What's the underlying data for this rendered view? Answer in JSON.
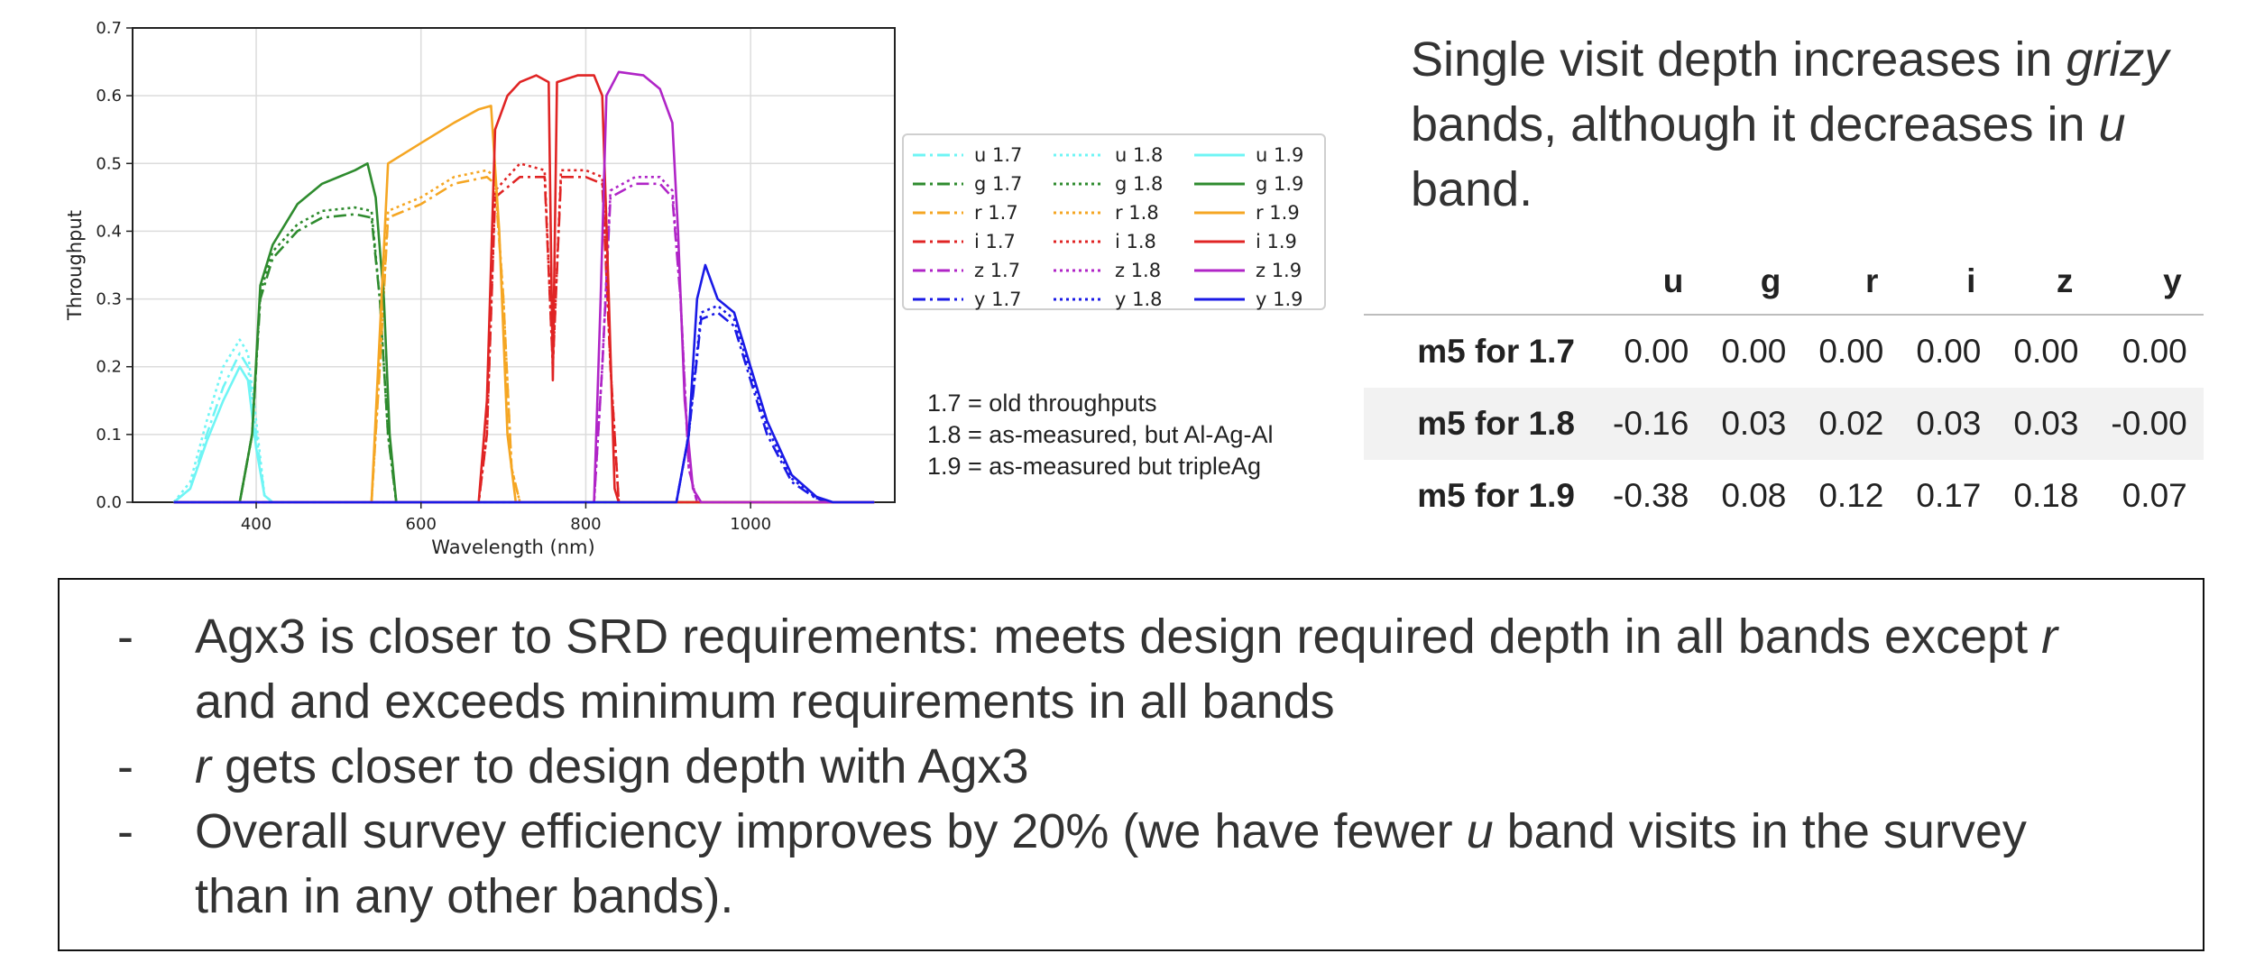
{
  "chart_data": {
    "type": "line",
    "xlabel": "Wavelength (nm)",
    "ylabel": "Throughput",
    "xlim": [
      250,
      1175
    ],
    "ylim": [
      0.0,
      0.7
    ],
    "xticks": [
      400,
      600,
      800,
      1000
    ],
    "yticks": [
      0.0,
      0.1,
      0.2,
      0.3,
      0.4,
      0.5,
      0.6,
      0.7
    ],
    "grid": true,
    "legend_position": "right",
    "colors": {
      "u": "#6ff5f5",
      "g": "#2e8b2e",
      "r": "#f5a623",
      "i": "#e02424",
      "z": "#b025c7",
      "y": "#1a1ae6"
    },
    "series": [
      {
        "name": "u 1.7",
        "band": "u",
        "style": "dashdot",
        "points": [
          [
            300,
            0
          ],
          [
            320,
            0.02
          ],
          [
            340,
            0.1
          ],
          [
            360,
            0.17
          ],
          [
            380,
            0.22
          ],
          [
            390,
            0.2
          ],
          [
            400,
            0.1
          ],
          [
            410,
            0.01
          ],
          [
            420,
            0
          ]
        ]
      },
      {
        "name": "g 1.7",
        "band": "g",
        "style": "dashdot",
        "points": [
          [
            380,
            0
          ],
          [
            395,
            0.1
          ],
          [
            405,
            0.3
          ],
          [
            420,
            0.36
          ],
          [
            450,
            0.4
          ],
          [
            480,
            0.42
          ],
          [
            520,
            0.425
          ],
          [
            540,
            0.42
          ],
          [
            550,
            0.3
          ],
          [
            560,
            0.1
          ],
          [
            570,
            0
          ]
        ]
      },
      {
        "name": "r 1.7",
        "band": "r",
        "style": "dashdot",
        "points": [
          [
            540,
            0
          ],
          [
            550,
            0.2
          ],
          [
            560,
            0.42
          ],
          [
            600,
            0.44
          ],
          [
            640,
            0.47
          ],
          [
            680,
            0.48
          ],
          [
            690,
            0.47
          ],
          [
            700,
            0.3
          ],
          [
            710,
            0.05
          ],
          [
            720,
            0
          ]
        ]
      },
      {
        "name": "i 1.7",
        "band": "i",
        "style": "dashdot",
        "points": [
          [
            670,
            0
          ],
          [
            680,
            0.1
          ],
          [
            690,
            0.45
          ],
          [
            720,
            0.48
          ],
          [
            750,
            0.48
          ],
          [
            760,
            0.2
          ],
          [
            770,
            0.48
          ],
          [
            800,
            0.48
          ],
          [
            820,
            0.47
          ],
          [
            830,
            0.2
          ],
          [
            840,
            0
          ]
        ]
      },
      {
        "name": "z 1.7",
        "band": "z",
        "style": "dashdot",
        "points": [
          [
            810,
            0
          ],
          [
            820,
            0.2
          ],
          [
            830,
            0.45
          ],
          [
            860,
            0.47
          ],
          [
            890,
            0.47
          ],
          [
            905,
            0.45
          ],
          [
            915,
            0.3
          ],
          [
            925,
            0.05
          ],
          [
            935,
            0
          ]
        ]
      },
      {
        "name": "y 1.7",
        "band": "y",
        "style": "dashdot",
        "points": [
          [
            910,
            0
          ],
          [
            925,
            0.1
          ],
          [
            940,
            0.27
          ],
          [
            960,
            0.28
          ],
          [
            980,
            0.26
          ],
          [
            1000,
            0.18
          ],
          [
            1020,
            0.1
          ],
          [
            1050,
            0.03
          ],
          [
            1080,
            0.005
          ],
          [
            1100,
            0
          ]
        ]
      },
      {
        "name": "u 1.8",
        "band": "u",
        "style": "dotted",
        "points": [
          [
            300,
            0
          ],
          [
            320,
            0.03
          ],
          [
            340,
            0.12
          ],
          [
            360,
            0.2
          ],
          [
            380,
            0.24
          ],
          [
            390,
            0.22
          ],
          [
            400,
            0.12
          ],
          [
            410,
            0.01
          ],
          [
            420,
            0
          ]
        ]
      },
      {
        "name": "g 1.8",
        "band": "g",
        "style": "dotted",
        "points": [
          [
            380,
            0
          ],
          [
            395,
            0.1
          ],
          [
            405,
            0.31
          ],
          [
            420,
            0.37
          ],
          [
            450,
            0.41
          ],
          [
            480,
            0.43
          ],
          [
            520,
            0.435
          ],
          [
            540,
            0.43
          ],
          [
            550,
            0.3
          ],
          [
            560,
            0.1
          ],
          [
            570,
            0
          ]
        ]
      },
      {
        "name": "r 1.8",
        "band": "r",
        "style": "dotted",
        "points": [
          [
            540,
            0
          ],
          [
            550,
            0.2
          ],
          [
            560,
            0.43
          ],
          [
            600,
            0.45
          ],
          [
            640,
            0.48
          ],
          [
            680,
            0.49
          ],
          [
            690,
            0.48
          ],
          [
            700,
            0.3
          ],
          [
            710,
            0.05
          ],
          [
            720,
            0
          ]
        ]
      },
      {
        "name": "i 1.8",
        "band": "i",
        "style": "dotted",
        "points": [
          [
            670,
            0
          ],
          [
            680,
            0.1
          ],
          [
            690,
            0.46
          ],
          [
            720,
            0.5
          ],
          [
            750,
            0.49
          ],
          [
            760,
            0.2
          ],
          [
            770,
            0.49
          ],
          [
            800,
            0.49
          ],
          [
            820,
            0.48
          ],
          [
            830,
            0.2
          ],
          [
            840,
            0
          ]
        ]
      },
      {
        "name": "z 1.8",
        "band": "z",
        "style": "dotted",
        "points": [
          [
            810,
            0
          ],
          [
            820,
            0.2
          ],
          [
            830,
            0.46
          ],
          [
            860,
            0.48
          ],
          [
            890,
            0.48
          ],
          [
            905,
            0.46
          ],
          [
            915,
            0.3
          ],
          [
            925,
            0.05
          ],
          [
            935,
            0
          ]
        ]
      },
      {
        "name": "y 1.8",
        "band": "y",
        "style": "dotted",
        "points": [
          [
            910,
            0
          ],
          [
            925,
            0.1
          ],
          [
            940,
            0.28
          ],
          [
            960,
            0.29
          ],
          [
            980,
            0.27
          ],
          [
            1000,
            0.19
          ],
          [
            1020,
            0.11
          ],
          [
            1050,
            0.035
          ],
          [
            1080,
            0.006
          ],
          [
            1100,
            0
          ]
        ]
      },
      {
        "name": "u 1.9",
        "band": "u",
        "style": "solid",
        "points": [
          [
            300,
            0
          ],
          [
            320,
            0.02
          ],
          [
            340,
            0.09
          ],
          [
            360,
            0.15
          ],
          [
            380,
            0.2
          ],
          [
            390,
            0.18
          ],
          [
            400,
            0.08
          ],
          [
            410,
            0.01
          ],
          [
            420,
            0
          ]
        ]
      },
      {
        "name": "g 1.9",
        "band": "g",
        "style": "solid",
        "points": [
          [
            380,
            0
          ],
          [
            395,
            0.1
          ],
          [
            405,
            0.32
          ],
          [
            420,
            0.38
          ],
          [
            450,
            0.44
          ],
          [
            480,
            0.47
          ],
          [
            520,
            0.49
          ],
          [
            535,
            0.5
          ],
          [
            545,
            0.45
          ],
          [
            555,
            0.3
          ],
          [
            562,
            0.1
          ],
          [
            570,
            0
          ]
        ]
      },
      {
        "name": "r 1.9",
        "band": "r",
        "style": "solid",
        "points": [
          [
            540,
            0
          ],
          [
            550,
            0.25
          ],
          [
            560,
            0.5
          ],
          [
            600,
            0.53
          ],
          [
            640,
            0.56
          ],
          [
            670,
            0.58
          ],
          [
            685,
            0.585
          ],
          [
            695,
            0.4
          ],
          [
            705,
            0.1
          ],
          [
            715,
            0
          ]
        ]
      },
      {
        "name": "i 1.9",
        "band": "i",
        "style": "solid",
        "points": [
          [
            670,
            0
          ],
          [
            680,
            0.15
          ],
          [
            690,
            0.55
          ],
          [
            705,
            0.6
          ],
          [
            720,
            0.62
          ],
          [
            740,
            0.63
          ],
          [
            755,
            0.62
          ],
          [
            760,
            0.18
          ],
          [
            765,
            0.62
          ],
          [
            790,
            0.63
          ],
          [
            810,
            0.63
          ],
          [
            820,
            0.6
          ],
          [
            828,
            0.3
          ],
          [
            835,
            0.02
          ],
          [
            840,
            0
          ]
        ]
      },
      {
        "name": "z 1.9",
        "band": "z",
        "style": "solid",
        "points": [
          [
            810,
            0
          ],
          [
            818,
            0.3
          ],
          [
            825,
            0.6
          ],
          [
            840,
            0.635
          ],
          [
            870,
            0.63
          ],
          [
            890,
            0.61
          ],
          [
            905,
            0.56
          ],
          [
            912,
            0.4
          ],
          [
            920,
            0.15
          ],
          [
            930,
            0.02
          ],
          [
            940,
            0
          ]
        ]
      },
      {
        "name": "y 1.9",
        "band": "y",
        "style": "solid",
        "points": [
          [
            910,
            0
          ],
          [
            925,
            0.1
          ],
          [
            935,
            0.3
          ],
          [
            945,
            0.35
          ],
          [
            960,
            0.3
          ],
          [
            980,
            0.28
          ],
          [
            1000,
            0.2
          ],
          [
            1020,
            0.12
          ],
          [
            1050,
            0.04
          ],
          [
            1080,
            0.008
          ],
          [
            1100,
            0
          ]
        ]
      }
    ]
  },
  "notes": {
    "line1": "1.7 = old throughputs",
    "line2": "1.8 = as-measured, but Al-Ag-Al",
    "line3": "1.9 = as-measured but tripleAg"
  },
  "headline": {
    "part1": "Single visit depth increases in ",
    "bands_italic": "grizy",
    "part2": " bands, although it decreases in ",
    "u_italic": "u",
    "part3": " band."
  },
  "m5_table": {
    "columns": [
      "u",
      "g",
      "r",
      "i",
      "z",
      "y"
    ],
    "rows": [
      {
        "label": "m5 for 1.7",
        "values": [
          "0.00",
          "0.00",
          "0.00",
          "0.00",
          "0.00",
          "0.00"
        ]
      },
      {
        "label": "m5 for 1.8",
        "values": [
          "-0.16",
          "0.03",
          "0.02",
          "0.03",
          "0.03",
          "-0.00"
        ]
      },
      {
        "label": "m5 for 1.9",
        "values": [
          "-0.38",
          "0.08",
          "0.12",
          "0.17",
          "0.18",
          "0.07"
        ]
      }
    ]
  },
  "bullets": {
    "dash": "-",
    "b1_part1": "Agx3 is closer to SRD requirements: meets design required depth in all bands except ",
    "b1_r": "r",
    "b1_part2": " and and exceeds minimum requirements in all bands",
    "b2_r": "r",
    "b2_part": " gets closer to design depth with Agx3",
    "b3_part1": "Overall survey efficiency improves by 20% (we have fewer ",
    "b3_u": "u",
    "b3_part2": " band visits in the survey than in any other bands)."
  }
}
